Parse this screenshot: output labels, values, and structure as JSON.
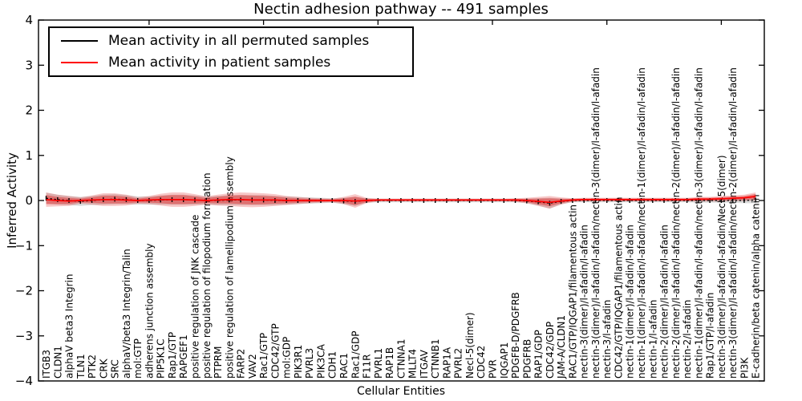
{
  "legend": {
    "items": [
      {
        "label": "Mean activity in all permuted samples",
        "color": "#000000"
      },
      {
        "label": "Mean activity in patient samples",
        "color": "#ff0000"
      }
    ]
  },
  "chart_data": {
    "type": "line",
    "title": "Nectin adhesion pathway -- 491 samples",
    "xlabel": "Cellular Entities",
    "ylabel": "Inferred Activity",
    "ylim": [
      -4,
      4
    ],
    "yticks": [
      4,
      3,
      2,
      1,
      0,
      -1,
      -2,
      -3,
      -4
    ],
    "grid": false,
    "legend_position": "upper left",
    "categories": [
      "ITGB3",
      "CLDN1",
      "alphaV beta3 Integrin",
      "TLN1",
      "PTK2",
      "CRK",
      "SRC",
      "alphaV/beta3 Integrin/Talin",
      "mol:GTP",
      "adherens junction assembly",
      "PIP5K1C",
      "Rap1/GTP",
      "RAPGEF1",
      "positive regulation of JNK cascade",
      "positive regulation of filopodium formation",
      "PTPRM",
      "positive regulation of lamellipodium assembly",
      "FARP2",
      "VAV2",
      "Rac1/GTP",
      "CDC42/GTP",
      "mol:GDP",
      "PIK3R1",
      "PVRL3",
      "PIK3CA",
      "CDH1",
      "RAC1",
      "Rac1/GDP",
      "F11R",
      "PVRL1",
      "RAP1B",
      "CTNNA1",
      "MLLT4",
      "ITGAV",
      "CTNNB1",
      "RAP1A",
      "PVRL2",
      "Necl-5(dimer)",
      "CDC42",
      "PVR",
      "IQGAP1",
      "PDGFB-D/PDGFRB",
      "PDGFRB",
      "RAP1/GDP",
      "CDC42/GDP",
      "JAM-A/CLDN1",
      "RAC1/GTP/IQGAP1/filamentous actin",
      "nectin-3(dimer)/l-afadin/l-afadin",
      "nectin-3(dimer)/l-afadin/l-afadin/nectin-3(dimer)/l-afadin/l-afadin",
      "nectin-3/l-afadin",
      "CDC42/GTP/IQGAP1/filamentous actin",
      "nectin-1(dimer)/l-afadin/l-afadin",
      "nectin-1(dimer)/l-afadin/l-afadin/nectin-1(dimer)/l-afadin/l-afadin",
      "nectin-1/l-afadin",
      "nectin-2(dimer)/l-afadin/l-afadin",
      "nectin-2(dimer)/l-afadin/l-afadin/nectin-2(dimer)/l-afadin/l-afadin",
      "nectin-2/l-afadin",
      "nectin-1(dimer)/l-afadin/l-afadin/nectin-3(dimer)/l-afadin/l-afadin",
      "Rap1/GTP/l-afadin",
      "nectin-3(dimer)/l-afadin/l-afadin/Necl-5(dimer)",
      "nectin-3(dimer)/l-afadin/l-afadin/nectin-2(dimer)/l-afadin/l-afadin",
      "PI3K",
      "E-cadherin/beta catenin/alpha catenin"
    ],
    "series": [
      {
        "name": "Mean activity in all permuted samples",
        "color": "#000000",
        "line_style": "dotted",
        "marker": "|",
        "values": [
          0.05,
          0.02,
          0,
          -0.02,
          0,
          0.02,
          0.03,
          0.02,
          0,
          0,
          0.01,
          0.02,
          0.02,
          0.01,
          0,
          0,
          0.01,
          0.01,
          0.01,
          0.01,
          0,
          0,
          0,
          0,
          0,
          0,
          -0.01,
          -0.02,
          0,
          0,
          0,
          0,
          0,
          0,
          0,
          0,
          0,
          0,
          0,
          0,
          0,
          0,
          -0.01,
          -0.03,
          -0.06,
          -0.02,
          0,
          0,
          0,
          0,
          0,
          0,
          0,
          0,
          0,
          0,
          0,
          0,
          0,
          0,
          0,
          0,
          0.01
        ]
      },
      {
        "name": "Mean activity in patient samples",
        "color": "#ff0000",
        "line_style": "solid",
        "marker": "none",
        "values": [
          0.02,
          0,
          -0.01,
          0,
          0.01,
          0.02,
          0.02,
          0.01,
          0,
          0.01,
          0.02,
          0.02,
          0.02,
          0.01,
          0,
          0.01,
          0.02,
          0.02,
          0.01,
          0.01,
          0.01,
          0,
          0,
          0,
          0,
          0,
          0,
          -0.01,
          0,
          0.01,
          0.01,
          0.01,
          0.01,
          0.01,
          0.01,
          0.01,
          0.01,
          0.01,
          0.01,
          0.01,
          0.01,
          0.01,
          0,
          -0.02,
          -0.04,
          -0.01,
          0.01,
          0.02,
          0.02,
          0.02,
          0.02,
          0.02,
          0.02,
          0.02,
          0.02,
          0.02,
          0.02,
          0.03,
          0.03,
          0.04,
          0.05,
          0.06,
          0.09
        ]
      }
    ],
    "permuted_std": [
      0.12,
      0.11,
      0.1,
      0.1,
      0.1,
      0.11,
      0.11,
      0.1,
      0.09,
      0.09,
      0.1,
      0.11,
      0.11,
      0.1,
      0.09,
      0.1,
      0.11,
      0.11,
      0.11,
      0.11,
      0.1,
      0.09,
      0.08,
      0.07,
      0.06,
      0.05,
      0.07,
      0.1,
      0.05,
      0.04,
      0.04,
      0.04,
      0.04,
      0.04,
      0.04,
      0.04,
      0.04,
      0.04,
      0.04,
      0.04,
      0.04,
      0.04,
      0.05,
      0.08,
      0.12,
      0.06,
      0.04,
      0.04,
      0.04,
      0.04,
      0.04,
      0.04,
      0.04,
      0.04,
      0.04,
      0.04,
      0.04,
      0.05,
      0.05,
      0.05,
      0.05,
      0.06,
      0.07
    ],
    "patient_std": [
      0.16,
      0.13,
      0.11,
      0.07,
      0.1,
      0.14,
      0.14,
      0.12,
      0.07,
      0.09,
      0.13,
      0.16,
      0.16,
      0.13,
      0.09,
      0.12,
      0.14,
      0.16,
      0.16,
      0.15,
      0.13,
      0.1,
      0.08,
      0.06,
      0.05,
      0.04,
      0.08,
      0.15,
      0.06,
      0.03,
      0.03,
      0.03,
      0.03,
      0.03,
      0.03,
      0.03,
      0.03,
      0.03,
      0.03,
      0.03,
      0.03,
      0.04,
      0.06,
      0.1,
      0.14,
      0.08,
      0.04,
      0.04,
      0.04,
      0.04,
      0.04,
      0.04,
      0.04,
      0.04,
      0.04,
      0.04,
      0.04,
      0.05,
      0.05,
      0.06,
      0.06,
      0.07,
      0.09
    ],
    "bands": [
      {
        "name": "permuted-std-band",
        "color": "#888888",
        "opacity": 0.3,
        "center_series": 0,
        "half_widths_key": "permuted_std",
        "scale": 1
      },
      {
        "name": "patient-std-band-outer",
        "color": "#e02020",
        "opacity": 0.25,
        "center_series": 1,
        "half_widths_key": "patient_std",
        "scale": 1
      },
      {
        "name": "patient-std-band-inner",
        "color": "#e02020",
        "opacity": 0.42,
        "center_series": 1,
        "half_widths_key": "patient_std",
        "scale": 0.62
      }
    ]
  }
}
